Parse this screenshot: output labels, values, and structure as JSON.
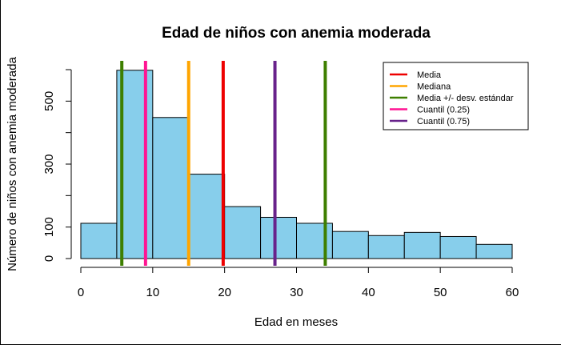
{
  "chart_data": {
    "type": "bar",
    "title": "Edad de niños con anemia moderada",
    "xlabel": "Edad en meses",
    "ylabel": "Número de niños con anemia moderada",
    "xlim": [
      0,
      60
    ],
    "ylim": [
      0,
      600
    ],
    "x_ticks": [
      0,
      10,
      20,
      30,
      40,
      50,
      60
    ],
    "y_ticks": [
      0,
      100,
      300,
      500
    ],
    "bins": [
      {
        "from": 0,
        "to": 5,
        "count": 112
      },
      {
        "from": 5,
        "to": 10,
        "count": 598
      },
      {
        "from": 10,
        "to": 15,
        "count": 448
      },
      {
        "from": 15,
        "to": 20,
        "count": 268
      },
      {
        "from": 20,
        "to": 25,
        "count": 165
      },
      {
        "from": 25,
        "to": 30,
        "count": 131
      },
      {
        "from": 30,
        "to": 35,
        "count": 112
      },
      {
        "from": 35,
        "to": 40,
        "count": 86
      },
      {
        "from": 40,
        "to": 45,
        "count": 73
      },
      {
        "from": 45,
        "to": 50,
        "count": 83
      },
      {
        "from": 50,
        "to": 55,
        "count": 70
      },
      {
        "from": 55,
        "to": 60,
        "count": 45
      }
    ],
    "bar_color": "#87ceeb",
    "grid": false,
    "legend_position": "top-right",
    "reference_lines": [
      {
        "name": "Media",
        "x": 19.8,
        "color": "#ee0000"
      },
      {
        "name": "Mediana",
        "x": 15,
        "color": "#ffa500"
      },
      {
        "name": "Media +/- desv. estándar",
        "x": [
          5.7,
          34
        ],
        "color": "#3e7f00"
      },
      {
        "name": "Cuantil (0.25)",
        "x": 9,
        "color": "#ff1493"
      },
      {
        "name": "Cuantil (0.75)",
        "x": 27,
        "color": "#68228b"
      }
    ]
  }
}
